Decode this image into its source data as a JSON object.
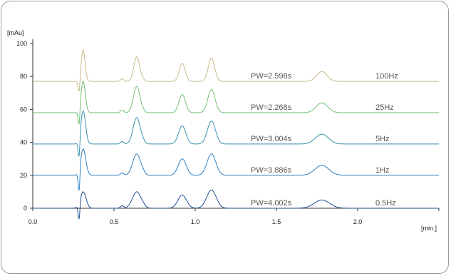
{
  "chart_data": {
    "type": "line",
    "y_unit_label": "[mAu]",
    "x_unit_label": "[min.]",
    "xlim": [
      0.0,
      2.5
    ],
    "ylim": [
      0,
      100
    ],
    "x_ticks": [
      "0.0",
      "0.5",
      "1.0",
      "1.5",
      "2.0"
    ],
    "y_ticks": [
      "0",
      "20",
      "40",
      "60",
      "80",
      "100"
    ],
    "peaks_min": [
      0.31,
      0.64,
      0.92,
      1.1,
      1.78
    ],
    "series": [
      {
        "name": "100Hz",
        "pw_label": "PW=2.598s",
        "baseline": 77,
        "color": "#c8b98a",
        "peak_heights": [
          19,
          15,
          11,
          14,
          6
        ]
      },
      {
        "name": "25Hz",
        "pw_label": "PW=2.268s",
        "baseline": 58,
        "color": "#6fbf73",
        "peak_heights": [
          19,
          16,
          11,
          14,
          6
        ]
      },
      {
        "name": "5Hz",
        "pw_label": "PW=3.004s",
        "baseline": 39,
        "color": "#3a8fb0",
        "peak_heights": [
          20,
          16,
          11,
          14,
          6
        ]
      },
      {
        "name": "1Hz",
        "pw_label": "PW=3.886s",
        "baseline": 20,
        "color": "#2f7fc0",
        "peak_heights": [
          16,
          13,
          10,
          13,
          6
        ]
      },
      {
        "name": "0.5Hz",
        "pw_label": "PW=4.002s",
        "baseline": 0,
        "color": "#1f4f8f",
        "peak_heights": [
          10,
          10,
          8,
          11,
          5
        ]
      }
    ]
  }
}
